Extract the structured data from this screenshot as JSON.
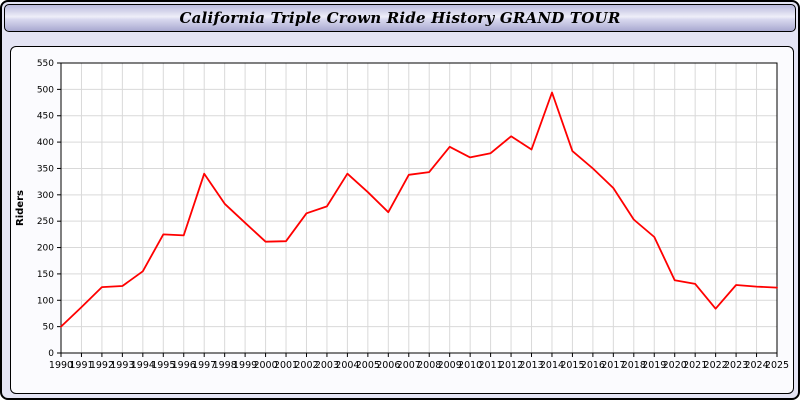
{
  "window": {
    "title": "California Triple Crown Ride History GRAND TOUR"
  },
  "chart_data": {
    "type": "line",
    "title": "California Triple Crown Ride History GRAND TOUR",
    "xlabel": "",
    "ylabel": "Riders",
    "ylim": [
      0,
      550
    ],
    "ytick_step": 50,
    "grid": true,
    "legend": "none",
    "line_color": "#ff0000",
    "x": [
      1990,
      1991,
      1992,
      1993,
      1994,
      1995,
      1996,
      1997,
      1998,
      1999,
      2000,
      2001,
      2002,
      2003,
      2004,
      2005,
      2006,
      2007,
      2008,
      2009,
      2010,
      2011,
      2012,
      2013,
      2014,
      2015,
      2016,
      2017,
      2018,
      2019,
      2020,
      2021,
      2022,
      2023,
      2024,
      2025
    ],
    "series": [
      {
        "name": "Riders",
        "values": [
          50,
          87,
          125,
          127,
          155,
          225,
          223,
          340,
          283,
          247,
          211,
          212,
          265,
          278,
          340,
          305,
          267,
          338,
          343,
          391,
          371,
          379,
          411,
          386,
          494,
          383,
          350,
          313,
          253,
          220,
          138,
          131,
          84,
          129,
          126,
          124
        ]
      }
    ]
  }
}
